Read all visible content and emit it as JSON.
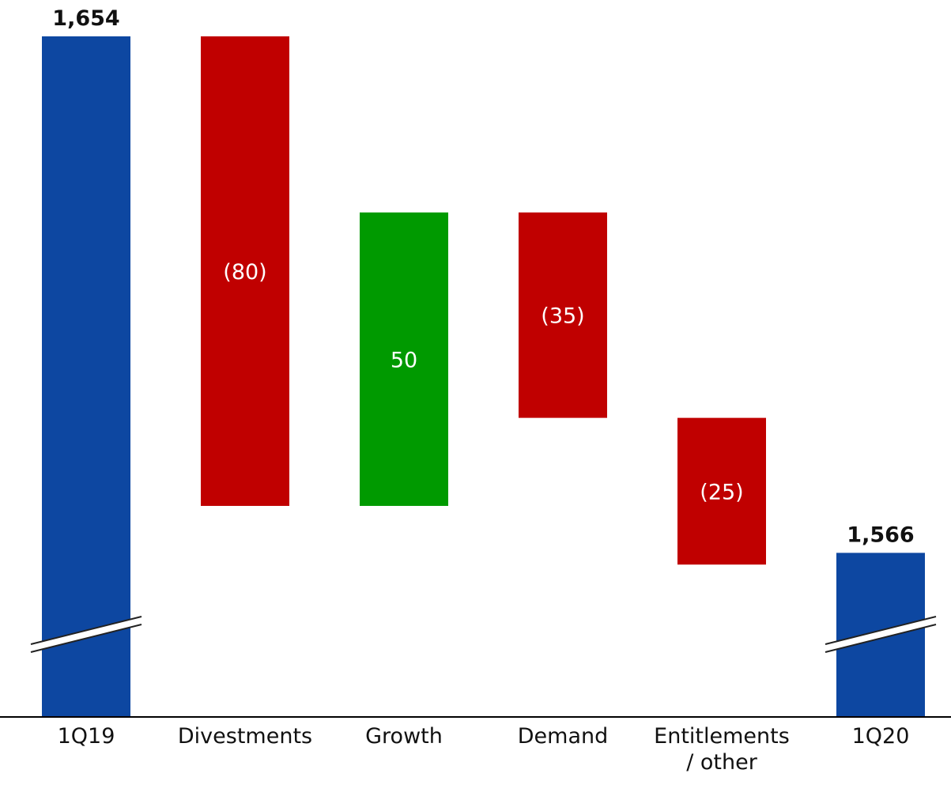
{
  "chart_data": {
    "type": "bar",
    "subtype": "waterfall",
    "title": "",
    "xlabel": "",
    "ylabel": "",
    "axis_break": true,
    "y_axis_visible": false,
    "grid": false,
    "categories": [
      "1Q19",
      "Divestments",
      "Growth",
      "Demand",
      "Entitlements / other",
      "1Q20"
    ],
    "category_lines": [
      [
        "1Q19"
      ],
      [
        "Divestments"
      ],
      [
        "Growth"
      ],
      [
        "Demand"
      ],
      [
        "Entitlements",
        "/ other"
      ],
      [
        "1Q20"
      ]
    ],
    "steps": [
      {
        "category": "1Q19",
        "kind": "total",
        "value": 1654,
        "label": "1,654"
      },
      {
        "category": "Divestments",
        "kind": "decrease",
        "value": -80,
        "label": "(80)"
      },
      {
        "category": "Growth",
        "kind": "increase",
        "value": 50,
        "label": "50"
      },
      {
        "category": "Demand",
        "kind": "decrease",
        "value": -35,
        "label": "(35)"
      },
      {
        "category": "Entitlements / other",
        "kind": "decrease",
        "value": -25,
        "label": "(25)"
      },
      {
        "category": "1Q20",
        "kind": "total",
        "value": 1566,
        "label": "1,566"
      }
    ],
    "colors": {
      "total": "#0d47a1",
      "decrease": "#c00000",
      "increase": "#009a00"
    }
  }
}
